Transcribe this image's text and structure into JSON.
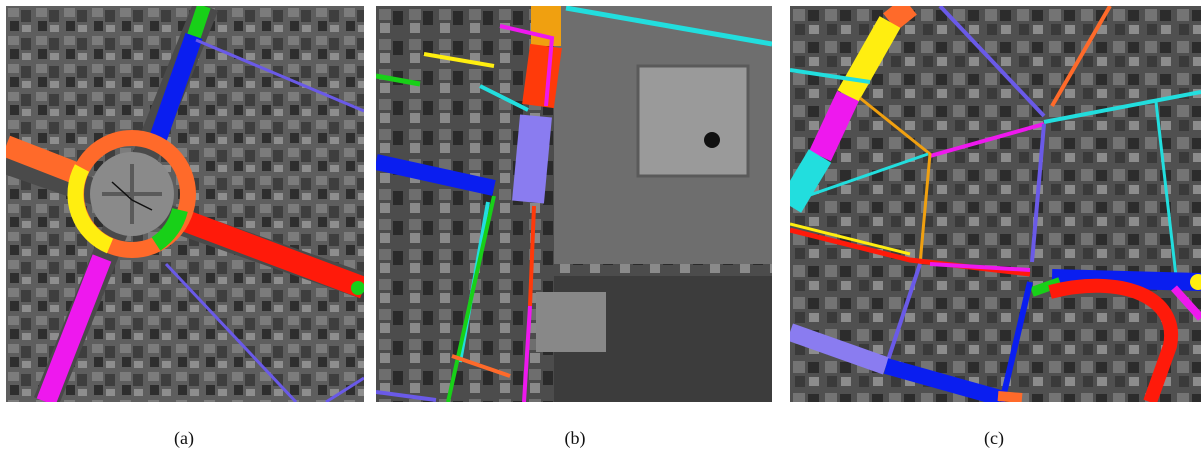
{
  "panels": [
    {
      "id": "a",
      "caption": "(a)"
    },
    {
      "id": "b",
      "caption": "(b)"
    },
    {
      "id": "c",
      "caption": "(c)"
    }
  ],
  "colors": {
    "blue": "#0a1ef0",
    "green": "#18d018",
    "red": "#ff1a0a",
    "orange": "#ff6a2a",
    "magenta": "#ee18ee",
    "yellow": "#ffee10",
    "purple": "#6a5ae8",
    "cyan": "#22dede",
    "gold": "#f0a010",
    "lavender": "#8a7cf0"
  }
}
